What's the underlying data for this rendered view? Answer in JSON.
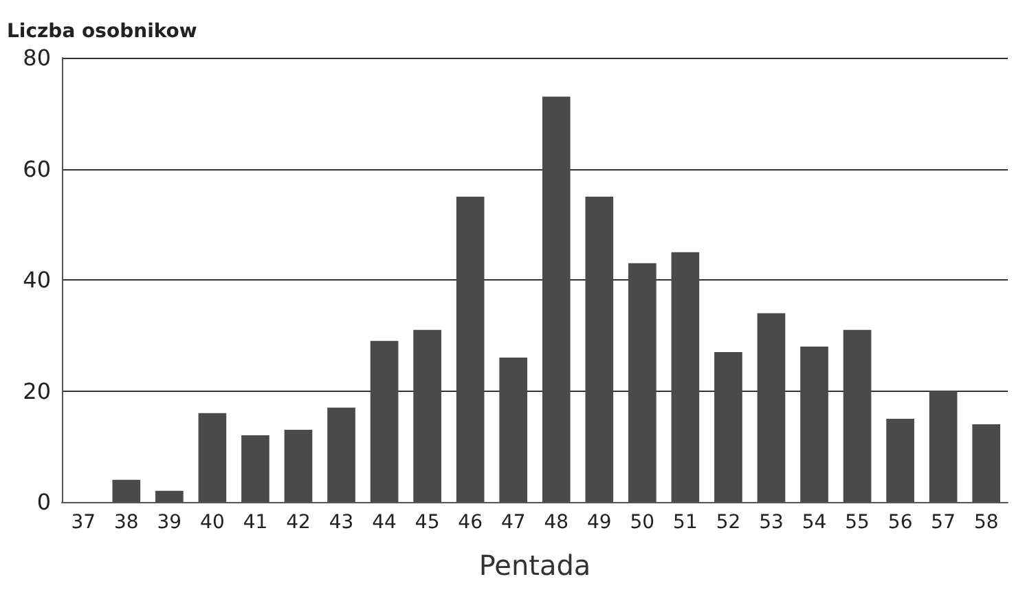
{
  "chart_data": {
    "type": "bar",
    "ylabel": "Liczba osobnikow",
    "xlabel": "Pentada",
    "categories": [
      "37",
      "38",
      "39",
      "40",
      "41",
      "42",
      "43",
      "44",
      "45",
      "46",
      "47",
      "48",
      "49",
      "50",
      "51",
      "52",
      "53",
      "54",
      "55",
      "56",
      "57",
      "58"
    ],
    "values": [
      0,
      4,
      2,
      16,
      12,
      13,
      17,
      29,
      31,
      55,
      26,
      73,
      55,
      43,
      45,
      27,
      34,
      28,
      31,
      15,
      20,
      14
    ],
    "color": "#4a4a4a",
    "ylim": [
      0,
      80
    ],
    "yticks": [
      0,
      20,
      40,
      60,
      80
    ],
    "grid": "y"
  }
}
